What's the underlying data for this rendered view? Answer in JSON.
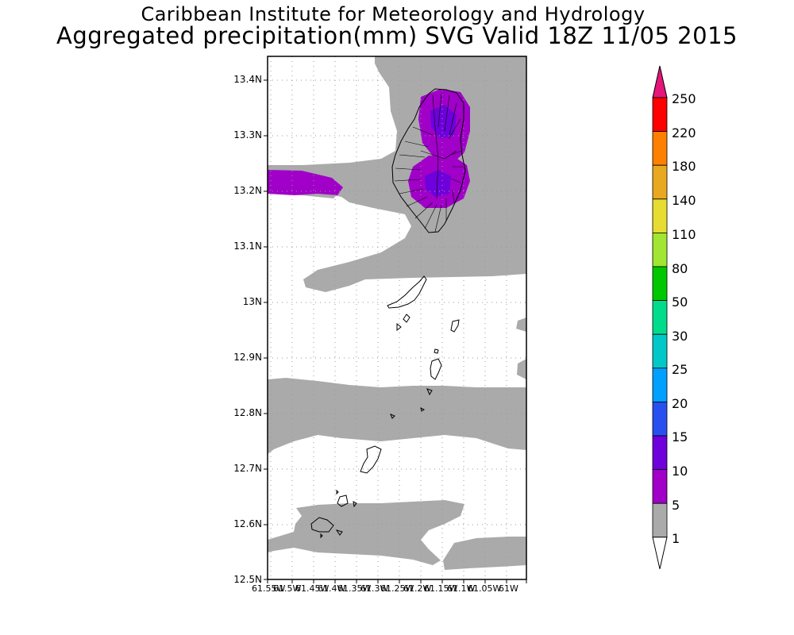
{
  "header": {
    "title_line1": "Caribbean Institute for Meteorology and Hydrology",
    "title_line2": "Aggregated precipitation(mm) SVG Valid 18Z 11/05 2015"
  },
  "axes": {
    "lat_labels": [
      "13.4N",
      "13.3N",
      "13.2N",
      "13.1N",
      "13N",
      "12.9N",
      "12.8N",
      "12.7N",
      "12.6N",
      "12.5N"
    ],
    "lon_labels": [
      "61.55W",
      "61.5W",
      "61.45W",
      "61.4W",
      "61.35W",
      "61.3W",
      "61.25W",
      "61.2W",
      "61.15W",
      "61.1W",
      "61.05W",
      "61W"
    ]
  },
  "colorbar": {
    "labels": [
      "250",
      "220",
      "180",
      "140",
      "110",
      "80",
      "50",
      "30",
      "25",
      "20",
      "15",
      "10",
      "5",
      "1"
    ],
    "colors": [
      "#ff0000",
      "#ff8000",
      "#e8a820",
      "#e6dc32",
      "#a0e632",
      "#00c800",
      "#00dc8c",
      "#00c8c8",
      "#00a0ff",
      "#2850f0",
      "#6e00dc",
      "#a000c8",
      "#aaaaaa"
    ],
    "top_arrow_color": "#e6157a",
    "bottom_arrow_color": "#ffffff"
  },
  "map": {
    "precip_colors": {
      "light": "#aaaaaa",
      "moderate": "#a000c8",
      "heavy": "#6e00dc"
    },
    "coastline_color": "#000000",
    "grid_color": "#9a9a9a"
  }
}
